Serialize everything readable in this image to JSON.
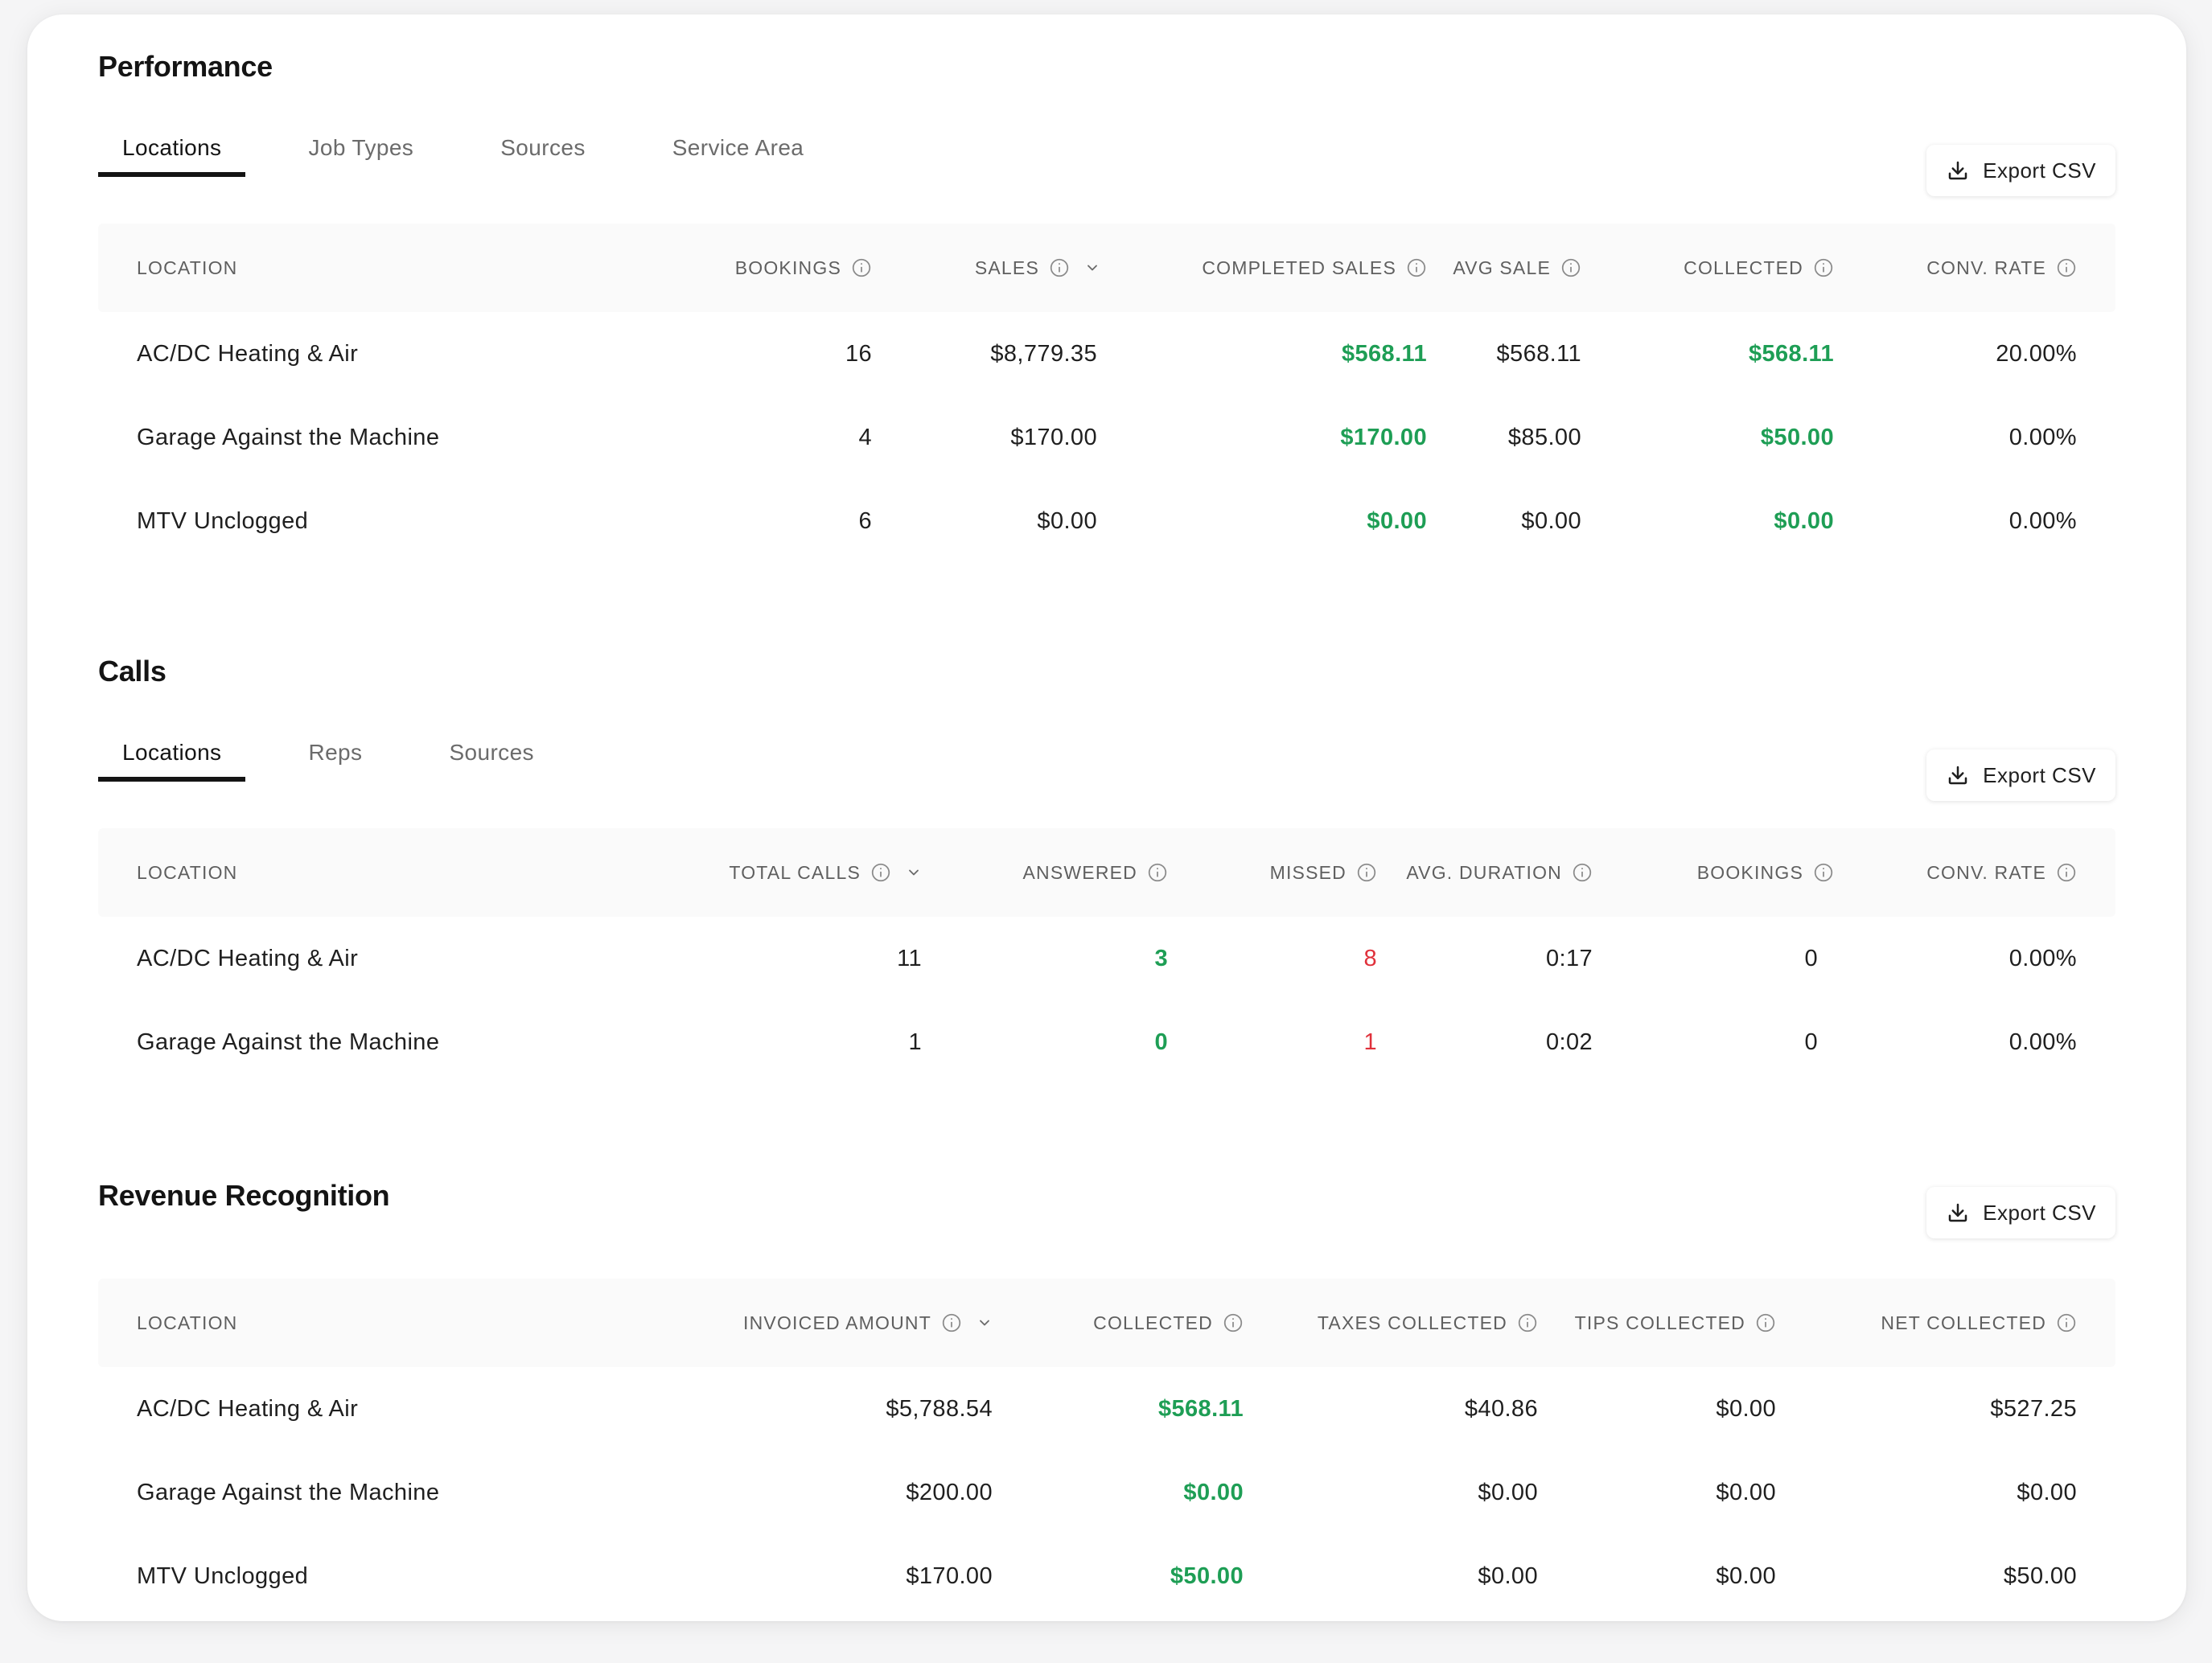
{
  "colors": {
    "positive": "#1e9e55",
    "negative": "#e0313b"
  },
  "export_label": "Export CSV",
  "performance": {
    "title": "Performance",
    "tabs": [
      {
        "label": "Locations",
        "active": true
      },
      {
        "label": "Job Types",
        "active": false
      },
      {
        "label": "Sources",
        "active": false
      },
      {
        "label": "Service Area",
        "active": false
      }
    ],
    "columns": [
      "LOCATION",
      "BOOKINGS",
      "SALES",
      "COMPLETED SALES",
      "AVG SALE",
      "COLLECTED",
      "CONV. RATE"
    ],
    "rows": [
      {
        "location": "AC/DC Heating & Air",
        "bookings": "16",
        "sales": "$8,779.35",
        "completed_sales": "$568.11",
        "avg_sale": "$568.11",
        "collected": "$568.11",
        "conv_rate": "20.00%"
      },
      {
        "location": "Garage Against the Machine",
        "bookings": "4",
        "sales": "$170.00",
        "completed_sales": "$170.00",
        "avg_sale": "$85.00",
        "collected": "$50.00",
        "conv_rate": "0.00%"
      },
      {
        "location": "MTV Unclogged",
        "bookings": "6",
        "sales": "$0.00",
        "completed_sales": "$0.00",
        "avg_sale": "$0.00",
        "collected": "$0.00",
        "conv_rate": "0.00%"
      }
    ]
  },
  "calls": {
    "title": "Calls",
    "tabs": [
      {
        "label": "Locations",
        "active": true
      },
      {
        "label": "Reps",
        "active": false
      },
      {
        "label": "Sources",
        "active": false
      }
    ],
    "columns": [
      "LOCATION",
      "TOTAL CALLS",
      "ANSWERED",
      "MISSED",
      "AVG. DURATION",
      "BOOKINGS",
      "CONV. RATE"
    ],
    "rows": [
      {
        "location": "AC/DC Heating & Air",
        "total_calls": "11",
        "answered": "3",
        "missed": "8",
        "avg_duration": "0:17",
        "bookings": "0",
        "conv_rate": "0.00%"
      },
      {
        "location": "Garage Against the Machine",
        "total_calls": "1",
        "answered": "0",
        "missed": "1",
        "avg_duration": "0:02",
        "bookings": "0",
        "conv_rate": "0.00%"
      }
    ]
  },
  "revenue": {
    "title": "Revenue Recognition",
    "columns": [
      "LOCATION",
      "INVOICED AMOUNT",
      "COLLECTED",
      "TAXES COLLECTED",
      "TIPS COLLECTED",
      "NET COLLECTED"
    ],
    "rows": [
      {
        "location": "AC/DC Heating & Air",
        "invoiced": "$5,788.54",
        "collected": "$568.11",
        "taxes": "$40.86",
        "tips": "$0.00",
        "net": "$527.25"
      },
      {
        "location": "Garage Against the Machine",
        "invoiced": "$200.00",
        "collected": "$0.00",
        "taxes": "$0.00",
        "tips": "$0.00",
        "net": "$0.00"
      },
      {
        "location": "MTV Unclogged",
        "invoiced": "$170.00",
        "collected": "$50.00",
        "taxes": "$0.00",
        "tips": "$0.00",
        "net": "$50.00"
      }
    ]
  }
}
